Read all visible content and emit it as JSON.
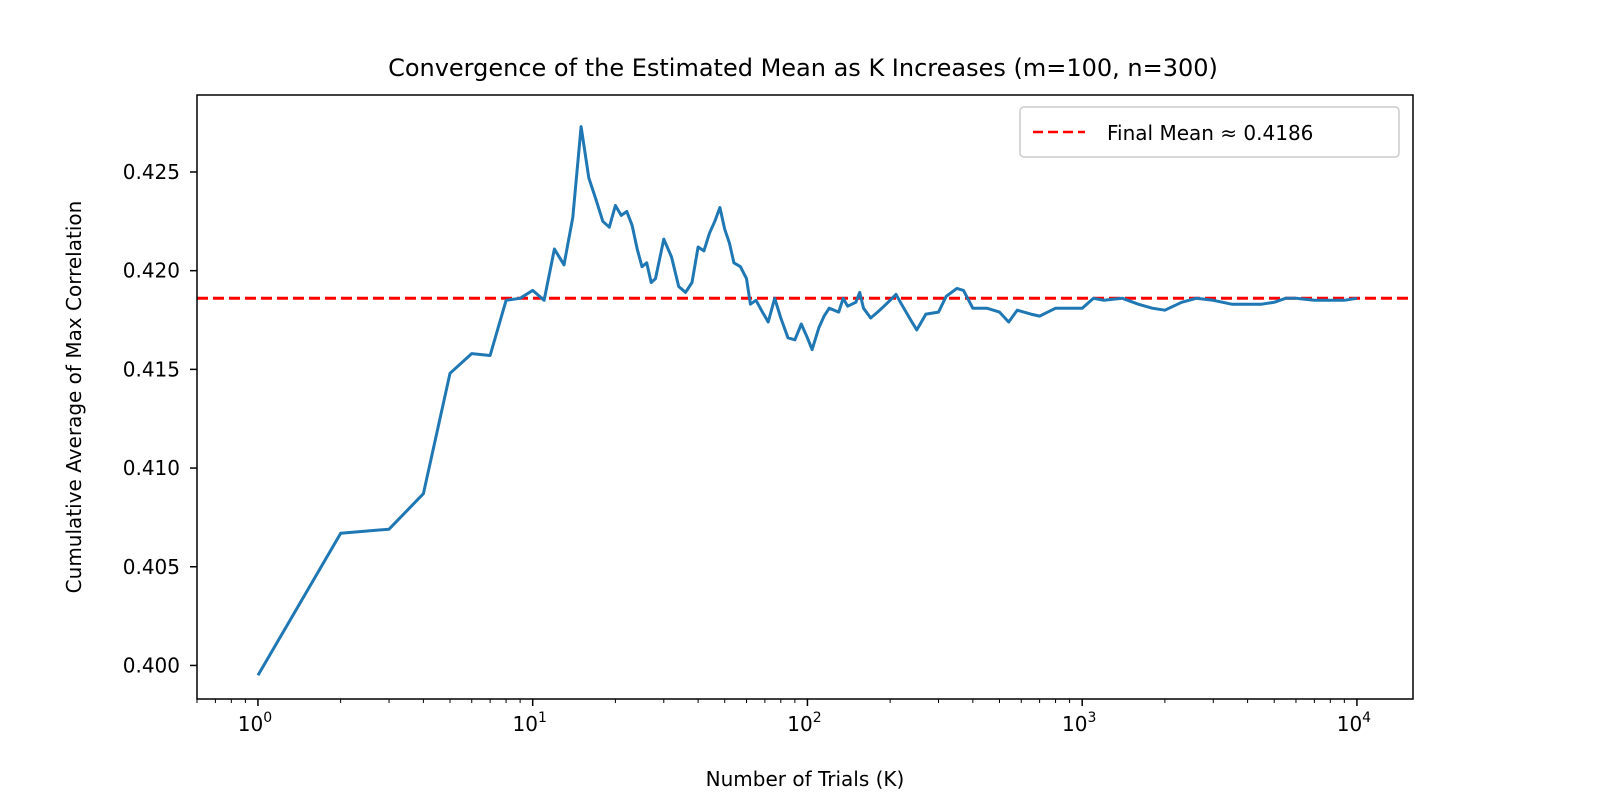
{
  "chart_data": {
    "type": "line",
    "title": "Convergence of the Estimated Mean as K Increases (m=100, n=300)",
    "xlabel": "Number of Trials (K)",
    "ylabel": "Cumulative Average of Max Correlation",
    "x_scale": "log",
    "xlim": [
      0.6,
      16000
    ],
    "ylim": [
      0.3983,
      0.4289
    ],
    "x_ticks": [
      {
        "value": 1,
        "base": "10",
        "exp": "0"
      },
      {
        "value": 10,
        "base": "10",
        "exp": "1"
      },
      {
        "value": 100,
        "base": "10",
        "exp": "2"
      },
      {
        "value": 1000,
        "base": "10",
        "exp": "3"
      },
      {
        "value": 10000,
        "base": "10",
        "exp": "4"
      }
    ],
    "y_ticks": [
      {
        "value": 0.4,
        "label": "0.400"
      },
      {
        "value": 0.405,
        "label": "0.405"
      },
      {
        "value": 0.41,
        "label": "0.410"
      },
      {
        "value": 0.415,
        "label": "0.415"
      },
      {
        "value": 0.42,
        "label": "0.420"
      },
      {
        "value": 0.425,
        "label": "0.425"
      }
    ],
    "grid": false,
    "legend": {
      "position": "top-right",
      "entries": [
        {
          "label": "Final Mean ≈ 0.4186",
          "color": "#ff0000",
          "style": "dashed"
        }
      ]
    },
    "reference_line": {
      "y": 0.4186,
      "color": "#ff0000",
      "style": "dashed"
    },
    "series": [
      {
        "color": "#1f77b4",
        "points": [
          [
            1,
            0.3995
          ],
          [
            2,
            0.4067
          ],
          [
            3,
            0.4069
          ],
          [
            4,
            0.4087
          ],
          [
            5,
            0.4148
          ],
          [
            6,
            0.4158
          ],
          [
            7,
            0.4157
          ],
          [
            8,
            0.4185
          ],
          [
            9,
            0.4186
          ],
          [
            10,
            0.419
          ],
          [
            11,
            0.4185
          ],
          [
            12,
            0.4211
          ],
          [
            13,
            0.4203
          ],
          [
            14,
            0.4227
          ],
          [
            15,
            0.4273
          ],
          [
            16,
            0.4247
          ],
          [
            17,
            0.4236
          ],
          [
            18,
            0.4225
          ],
          [
            19,
            0.4222
          ],
          [
            20,
            0.4233
          ],
          [
            21,
            0.4228
          ],
          [
            22,
            0.423
          ],
          [
            23,
            0.4223
          ],
          [
            24,
            0.4211
          ],
          [
            25,
            0.4202
          ],
          [
            26,
            0.4204
          ],
          [
            27,
            0.4194
          ],
          [
            28,
            0.4196
          ],
          [
            30,
            0.4216
          ],
          [
            32,
            0.4207
          ],
          [
            34,
            0.4192
          ],
          [
            36,
            0.4189
          ],
          [
            38,
            0.4194
          ],
          [
            40,
            0.4212
          ],
          [
            42,
            0.421
          ],
          [
            44,
            0.4219
          ],
          [
            46,
            0.4225
          ],
          [
            48,
            0.4232
          ],
          [
            50,
            0.4221
          ],
          [
            52,
            0.4214
          ],
          [
            54,
            0.4204
          ],
          [
            57,
            0.4202
          ],
          [
            60,
            0.4196
          ],
          [
            62,
            0.4183
          ],
          [
            65,
            0.4185
          ],
          [
            68,
            0.418
          ],
          [
            72,
            0.4174
          ],
          [
            76,
            0.4186
          ],
          [
            80,
            0.4176
          ],
          [
            85,
            0.4166
          ],
          [
            90,
            0.4165
          ],
          [
            95,
            0.4173
          ],
          [
            100,
            0.4166
          ],
          [
            104,
            0.416
          ],
          [
            110,
            0.4171
          ],
          [
            115,
            0.4177
          ],
          [
            120,
            0.4181
          ],
          [
            130,
            0.4179
          ],
          [
            135,
            0.4186
          ],
          [
            140,
            0.4182
          ],
          [
            150,
            0.4184
          ],
          [
            155,
            0.4189
          ],
          [
            160,
            0.4181
          ],
          [
            170,
            0.4176
          ],
          [
            180,
            0.4179
          ],
          [
            190,
            0.4182
          ],
          [
            200,
            0.4185
          ],
          [
            210,
            0.4188
          ],
          [
            220,
            0.4183
          ],
          [
            240,
            0.4174
          ],
          [
            250,
            0.417
          ],
          [
            270,
            0.4178
          ],
          [
            300,
            0.4179
          ],
          [
            320,
            0.4187
          ],
          [
            350,
            0.4191
          ],
          [
            370,
            0.419
          ],
          [
            400,
            0.4181
          ],
          [
            450,
            0.4181
          ],
          [
            500,
            0.4179
          ],
          [
            540,
            0.4174
          ],
          [
            580,
            0.418
          ],
          [
            650,
            0.4178
          ],
          [
            700,
            0.4177
          ],
          [
            800,
            0.4181
          ],
          [
            900,
            0.4181
          ],
          [
            1000,
            0.4181
          ],
          [
            1100,
            0.4186
          ],
          [
            1200,
            0.4185
          ],
          [
            1400,
            0.4186
          ],
          [
            1600,
            0.4183
          ],
          [
            1800,
            0.4181
          ],
          [
            2000,
            0.418
          ],
          [
            2300,
            0.4184
          ],
          [
            2600,
            0.4186
          ],
          [
            3000,
            0.4185
          ],
          [
            3500,
            0.4183
          ],
          [
            4000,
            0.4183
          ],
          [
            4500,
            0.4183
          ],
          [
            5000,
            0.4184
          ],
          [
            5500,
            0.4186
          ],
          [
            6000,
            0.4186
          ],
          [
            7000,
            0.4185
          ],
          [
            8000,
            0.4185
          ],
          [
            9000,
            0.4185
          ],
          [
            10000,
            0.4186
          ]
        ]
      }
    ]
  }
}
